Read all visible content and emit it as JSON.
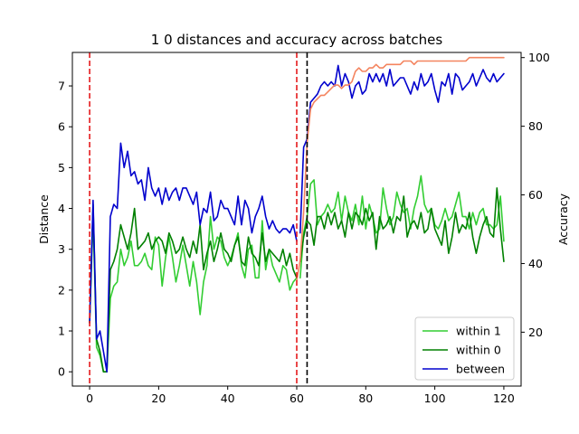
{
  "chart_data": {
    "type": "line",
    "title": "1 0 distances and accuracy across batches",
    "xlabel": "",
    "ylabel": "Distance",
    "y2label": "Accuracy",
    "xlim": [
      -5,
      125
    ],
    "ylim": [
      -0.35,
      7.82
    ],
    "y2lim": [
      4.3,
      101.5
    ],
    "xticks": [
      "0",
      "20",
      "40",
      "60",
      "80",
      "100",
      "120"
    ],
    "yticks": [
      "0",
      "1",
      "2",
      "3",
      "4",
      "5",
      "6",
      "7"
    ],
    "y2ticks": [
      "20",
      "40",
      "60",
      "80",
      "100"
    ],
    "vlines": [
      {
        "x": 0,
        "color": "#e41a1c",
        "style": "dashed"
      },
      {
        "x": 60,
        "color": "#e41a1c",
        "style": "dashed"
      },
      {
        "x": 63,
        "color": "#000000",
        "style": "dashed"
      }
    ],
    "legend_position": "lower-right",
    "series": [
      {
        "name": "within 1",
        "axis": "left",
        "color": "#32cd32",
        "segments": [
          {
            "x": [
              0,
              1,
              2,
              3,
              4,
              5,
              6,
              7,
              8,
              9,
              10,
              11,
              12,
              13,
              14,
              15,
              16,
              17,
              18,
              19,
              20,
              21,
              22,
              23,
              24,
              25,
              26,
              27,
              28,
              29,
              30,
              31,
              32,
              33,
              34,
              35,
              36,
              37,
              38,
              39,
              40,
              41,
              42,
              43,
              44,
              45,
              46,
              47,
              48,
              49,
              50,
              51,
              52,
              53,
              54,
              55,
              56,
              57,
              58,
              59,
              60
            ],
            "y": [
              1.2,
              3.8,
              0.6,
              0.4,
              0.0,
              0.0,
              1.8,
              2.1,
              2.2,
              3.0,
              2.6,
              2.8,
              3.2,
              2.6,
              2.6,
              2.7,
              2.9,
              2.6,
              2.5,
              3.3,
              3.1,
              2.1,
              2.8,
              3.3,
              2.8,
              2.2,
              2.6,
              3.1,
              2.6,
              2.1,
              2.7,
              2.2,
              1.4,
              2.2,
              2.6,
              3.8,
              3.0,
              3.3,
              3.2,
              2.8,
              2.6,
              2.8,
              3.1,
              3.4,
              2.6,
              2.3,
              3.0,
              3.1,
              2.3,
              2.3,
              3.7,
              2.5,
              3.0,
              2.6,
              2.4,
              2.2,
              2.6,
              2.5,
              2.0,
              2.2,
              2.3
            ]
          },
          {
            "x": [
              61,
              62,
              63,
              64,
              65,
              66,
              67,
              68,
              69,
              70,
              71,
              72,
              73,
              74,
              75,
              76,
              77,
              78,
              79,
              80,
              81,
              82,
              83,
              84,
              85,
              86,
              87,
              88,
              89,
              90,
              91,
              92,
              93,
              94,
              95,
              96,
              97,
              98,
              99,
              100,
              101,
              102,
              103,
              104,
              105,
              106,
              107,
              108,
              109,
              110,
              111,
              112,
              113,
              114,
              115,
              116,
              117,
              118,
              119,
              120
            ],
            "y": [
              2.3,
              3.4,
              3.8,
              4.6,
              4.7,
              3.6,
              3.8,
              3.9,
              4.1,
              3.9,
              4.0,
              4.4,
              3.7,
              4.3,
              3.9,
              3.7,
              4.1,
              3.6,
              4.3,
              3.5,
              4.1,
              3.8,
              3.4,
              3.5,
              4.5,
              4.0,
              3.6,
              3.8,
              4.4,
              4.1,
              3.9,
              4.0,
              3.5,
              4.0,
              4.3,
              4.8,
              4.1,
              3.9,
              4.0,
              3.6,
              3.5,
              3.7,
              4.0,
              3.7,
              3.8,
              4.1,
              4.4,
              3.8,
              3.8,
              3.5,
              3.9,
              3.6,
              3.9,
              4.0,
              3.6,
              3.6,
              3.5,
              3.6,
              4.3,
              3.2
            ]
          }
        ]
      },
      {
        "name": "within 0",
        "axis": "left",
        "color": "#008000",
        "segments": [
          {
            "x": [
              0,
              1,
              2,
              3,
              4,
              5,
              6,
              7,
              8,
              9,
              10,
              11,
              12,
              13,
              14,
              15,
              16,
              17,
              18,
              19,
              20,
              21,
              22,
              23,
              24,
              25,
              26,
              27,
              28,
              29,
              30,
              31,
              32,
              33,
              34,
              35,
              36,
              37,
              38,
              39,
              40,
              41,
              42,
              43,
              44,
              45,
              46,
              47,
              48,
              49,
              50,
              51,
              52,
              53,
              54,
              55,
              56,
              57,
              58,
              59,
              60
            ],
            "y": [
              1.2,
              4.1,
              0.8,
              0.5,
              0.0,
              0.0,
              2.5,
              2.7,
              3.0,
              3.6,
              3.3,
              3.0,
              3.4,
              4.0,
              3.0,
              3.1,
              3.2,
              3.4,
              3.0,
              3.2,
              3.3,
              3.2,
              2.9,
              3.4,
              3.2,
              2.9,
              3.0,
              3.3,
              3.0,
              2.8,
              3.2,
              2.9,
              3.6,
              2.5,
              2.9,
              3.2,
              2.7,
              3.0,
              3.4,
              3.0,
              2.9,
              2.7,
              3.1,
              3.3,
              2.7,
              2.6,
              3.3,
              2.9,
              2.8,
              2.6,
              3.4,
              2.7,
              3.0,
              2.9,
              2.8,
              2.7,
              3.0,
              2.6,
              2.9,
              2.5,
              2.3
            ]
          },
          {
            "x": [
              61,
              62,
              63,
              64,
              65,
              66,
              67,
              68,
              69,
              70,
              71,
              72,
              73,
              74,
              75,
              76,
              77,
              78,
              79,
              80,
              81,
              82,
              83,
              84,
              85,
              86,
              87,
              88,
              89,
              90,
              91,
              92,
              93,
              94,
              95,
              96,
              97,
              98,
              99,
              100,
              101,
              102,
              103,
              104,
              105,
              106,
              107,
              108,
              109,
              110,
              111,
              112,
              113,
              114,
              115,
              116,
              117,
              118,
              119,
              120
            ],
            "y": [
              2.7,
              3.3,
              3.7,
              3.6,
              3.1,
              3.8,
              3.8,
              3.5,
              3.9,
              3.6,
              3.9,
              3.5,
              3.7,
              3.3,
              3.9,
              3.5,
              3.9,
              3.8,
              3.6,
              4.0,
              3.7,
              3.9,
              3.0,
              3.8,
              3.5,
              3.6,
              3.8,
              3.4,
              3.8,
              3.7,
              4.3,
              3.3,
              3.6,
              3.7,
              3.5,
              3.9,
              3.4,
              3.5,
              4.0,
              3.5,
              3.3,
              3.1,
              3.7,
              2.9,
              3.3,
              3.9,
              3.4,
              3.6,
              3.5,
              3.9,
              3.3,
              2.9,
              3.3,
              3.6,
              3.8,
              3.4,
              3.3,
              4.5,
              3.5,
              2.7
            ]
          }
        ]
      },
      {
        "name": "between",
        "axis": "left",
        "color": "#0000cd",
        "segments": [
          {
            "x": [
              0,
              1,
              2,
              3,
              4,
              5,
              6,
              7,
              8,
              9,
              10,
              11,
              12,
              13,
              14,
              15,
              16,
              17,
              18,
              19,
              20,
              21,
              22,
              23,
              24,
              25,
              26,
              27,
              28,
              29,
              30,
              31,
              32,
              33,
              34,
              35,
              36,
              37,
              38,
              39,
              40,
              41,
              42,
              43,
              44,
              45,
              46,
              47,
              48,
              49,
              50,
              51,
              52,
              53,
              54,
              55,
              56,
              57,
              58,
              59,
              60
            ],
            "y": [
              1.2,
              4.2,
              0.8,
              1.0,
              0.5,
              0.0,
              3.8,
              4.1,
              4.0,
              5.6,
              5.0,
              5.4,
              4.8,
              4.9,
              4.6,
              4.7,
              4.2,
              5.0,
              4.5,
              4.3,
              4.5,
              4.1,
              4.5,
              4.2,
              4.4,
              4.5,
              4.2,
              4.5,
              4.5,
              4.3,
              4.1,
              4.4,
              3.6,
              4.0,
              3.9,
              4.4,
              3.7,
              3.8,
              4.2,
              4.0,
              4.0,
              3.8,
              3.6,
              4.3,
              3.6,
              4.2,
              4.0,
              3.4,
              3.8,
              4.0,
              4.3,
              3.8,
              3.5,
              3.7,
              3.5,
              3.4,
              3.5,
              3.5,
              3.4,
              3.6,
              3.2
            ]
          },
          {
            "x": [
              61,
              62,
              63,
              64,
              65,
              66,
              67,
              68,
              69,
              70,
              71,
              72,
              73,
              74,
              75,
              76,
              77,
              78,
              79,
              80,
              81,
              82,
              83,
              84,
              85,
              86,
              87,
              88,
              89,
              90,
              91,
              92,
              93,
              94,
              95,
              96,
              97,
              98,
              99,
              100,
              101,
              102,
              103,
              104,
              105,
              106,
              107,
              108,
              109,
              110,
              111,
              112,
              113,
              114,
              115,
              116,
              117,
              118,
              119,
              120
            ],
            "y": [
              3.4,
              5.5,
              5.7,
              6.6,
              6.7,
              6.8,
              7.0,
              7.1,
              7.0,
              7.1,
              7.0,
              7.5,
              7.0,
              7.3,
              7.1,
              6.7,
              7.0,
              7.1,
              6.8,
              6.9,
              7.3,
              7.1,
              7.3,
              7.1,
              7.3,
              7.0,
              7.4,
              7.0,
              7.1,
              7.2,
              7.2,
              7.0,
              6.8,
              7.1,
              6.9,
              7.3,
              7.0,
              7.1,
              7.3,
              6.9,
              6.6,
              7.1,
              7.0,
              7.3,
              6.8,
              7.3,
              7.2,
              6.9,
              7.0,
              7.1,
              7.3,
              7.0,
              7.2,
              7.4,
              7.2,
              7.1,
              7.3,
              7.1,
              7.2,
              7.3
            ]
          }
        ]
      },
      {
        "name": "",
        "axis": "right",
        "color": "#f4845f",
        "segments": [
          {
            "x": [
              60,
              61,
              62,
              63,
              64,
              65,
              66,
              67,
              68,
              69,
              70,
              71,
              72,
              73,
              74,
              75,
              76,
              77,
              78,
              79,
              80,
              81,
              82,
              83,
              84,
              85,
              86,
              87,
              88,
              89,
              90,
              91,
              92,
              93,
              94,
              95,
              96,
              97,
              98,
              99,
              100,
              101,
              102,
              103,
              104,
              105,
              106,
              107,
              108,
              109,
              110,
              111,
              112,
              113,
              114,
              115,
              116,
              117,
              118,
              119,
              120
            ],
            "y": [
              35,
              41,
              55,
              75,
              85,
              87,
              88,
              89,
              89,
              90,
              91,
              92,
              92,
              91,
              92,
              92,
              93,
              96,
              97,
              96,
              96,
              97,
              97,
              98,
              97,
              97,
              98,
              98,
              98,
              98,
              98,
              99,
              99,
              99,
              98,
              99,
              99,
              99,
              99,
              99,
              99,
              99,
              99,
              99,
              99,
              99,
              99,
              99,
              99,
              99,
              100,
              100,
              100,
              100,
              100,
              100,
              100,
              100,
              100,
              100,
              100
            ]
          }
        ]
      }
    ]
  }
}
